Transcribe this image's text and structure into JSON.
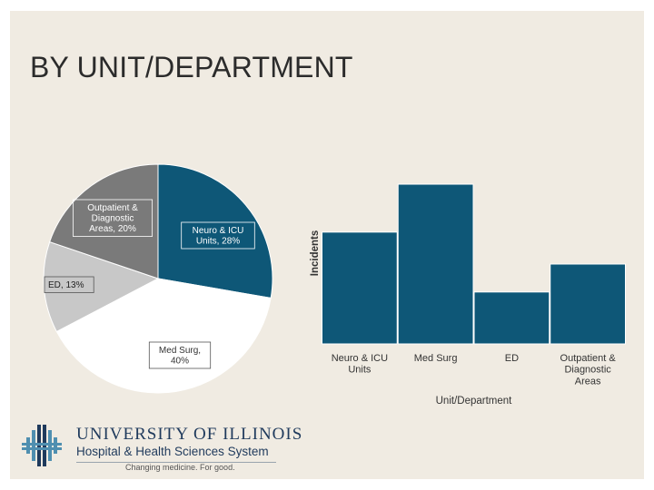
{
  "slide_title": "BY UNIT/DEPARTMENT",
  "colors": {
    "background": "#f0ebe2",
    "neuro_icu": "#0e5777",
    "med_surg": "#ffffff",
    "ed": "#c8c8c8",
    "outpatient": "#7a7a7a",
    "bar": "#0e5777",
    "logo_blue": "#1f3a5c"
  },
  "chart_data": [
    {
      "type": "pie",
      "title": "",
      "slices": [
        {
          "label_lines": [
            "Neuro & ICU",
            "Units, 28%"
          ],
          "value": 28
        },
        {
          "label_lines": [
            "Med Surg,",
            "40%"
          ],
          "value": 40
        },
        {
          "label_lines": [
            "ED, 13%"
          ],
          "value": 13
        },
        {
          "label_lines": [
            "Outpatient &",
            "Diagnostic",
            "Areas, 20%"
          ],
          "value": 20
        }
      ]
    },
    {
      "type": "bar",
      "title": "",
      "xlabel": "Unit/Department",
      "ylabel": "Incidents",
      "categories": [
        [
          "Neuro & ICU",
          "Units"
        ],
        [
          "Med Surg"
        ],
        [
          "ED"
        ],
        [
          "Outpatient &",
          "Diagnostic",
          "Areas"
        ]
      ],
      "values": [
        28,
        40,
        13,
        20
      ],
      "ylim": [
        0,
        40
      ]
    }
  ],
  "logo": {
    "name": "UNIVERSITY OF ILLINOIS",
    "subtitle": "Hospital & Health Sciences System",
    "tagline": "Changing medicine. For good."
  }
}
